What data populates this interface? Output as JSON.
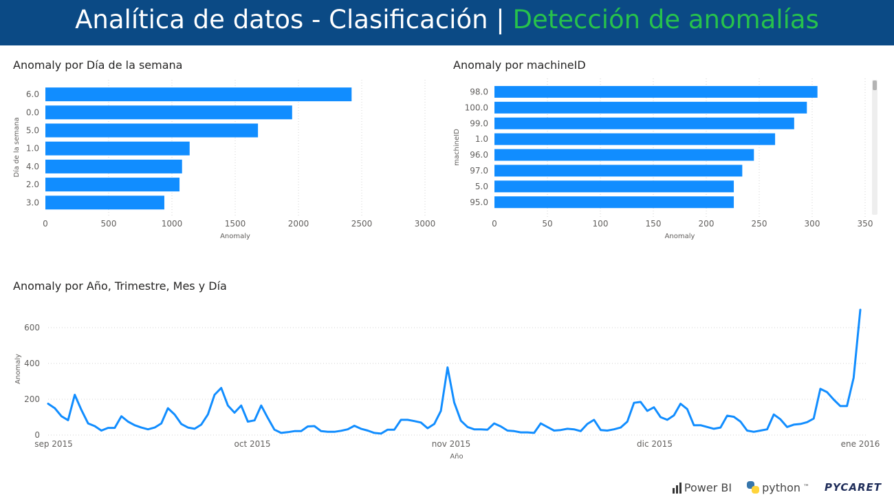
{
  "header": {
    "title_main": "Analítica de datos - Clasificación",
    "title_sep": "|",
    "title_highlight": "Detección de anomalías",
    "bg_color": "#0b4a85",
    "highlight_color": "#27c24c"
  },
  "chart_data": [
    {
      "type": "bar",
      "orientation": "horizontal",
      "title": "Anomaly por Día de la semana",
      "xlabel": "Anomaly",
      "ylabel": "Día de la semana",
      "categories": [
        "6.0",
        "0.0",
        "5.0",
        "1.0",
        "4.0",
        "2.0",
        "3.0"
      ],
      "values": [
        2420,
        1950,
        1680,
        1140,
        1080,
        1060,
        940
      ],
      "xlim": [
        0,
        3000
      ],
      "xticks": [
        0,
        500,
        1000,
        1500,
        2000,
        2500,
        3000
      ],
      "color": "#118dff"
    },
    {
      "type": "bar",
      "orientation": "horizontal",
      "title": "Anomaly por machineID",
      "xlabel": "Anomaly",
      "ylabel": "machineID",
      "categories": [
        "98.0",
        "100.0",
        "99.0",
        "1.0",
        "96.0",
        "97.0",
        "5.0",
        "95.0"
      ],
      "values": [
        305,
        295,
        283,
        265,
        245,
        234,
        226,
        226
      ],
      "xlim": [
        0,
        350
      ],
      "xticks": [
        0,
        50,
        100,
        150,
        200,
        250,
        300,
        350
      ],
      "color": "#118dff"
    },
    {
      "type": "line",
      "title": "Anomaly por Año, Trimestre, Mes y Día",
      "xlabel": "Año",
      "ylabel": "Anomaly",
      "xtick_labels": [
        "sep 2015",
        "oct 2015",
        "nov 2015",
        "dic 2015",
        "ene 2016"
      ],
      "yticks": [
        0,
        200,
        400,
        600
      ],
      "ylim": [
        0,
        700
      ],
      "color": "#118dff",
      "values": [
        175,
        150,
        105,
        83,
        225,
        140,
        65,
        50,
        25,
        40,
        40,
        105,
        75,
        55,
        42,
        32,
        42,
        65,
        150,
        115,
        62,
        42,
        35,
        58,
        115,
        225,
        263,
        165,
        125,
        165,
        75,
        82,
        165,
        95,
        30,
        12,
        16,
        22,
        22,
        48,
        50,
        22,
        18,
        18,
        24,
        32,
        52,
        35,
        25,
        12,
        8,
        30,
        30,
        85,
        85,
        78,
        70,
        38,
        62,
        135,
        378,
        182,
        80,
        45,
        32,
        32,
        30,
        65,
        48,
        25,
        22,
        15,
        15,
        12,
        65,
        45,
        25,
        28,
        35,
        32,
        22,
        62,
        85,
        28,
        25,
        32,
        42,
        75,
        180,
        185,
        135,
        155,
        100,
        85,
        110,
        175,
        145,
        55,
        55,
        45,
        35,
        42,
        108,
        102,
        75,
        25,
        18,
        25,
        32,
        115,
        88,
        45,
        58,
        62,
        72,
        92,
        258,
        240,
        198,
        162,
        162,
        320,
        700
      ]
    }
  ],
  "footer": {
    "powerbi": "Power BI",
    "python": "python",
    "python_tm": "™",
    "pycaret": "PYCARET"
  }
}
